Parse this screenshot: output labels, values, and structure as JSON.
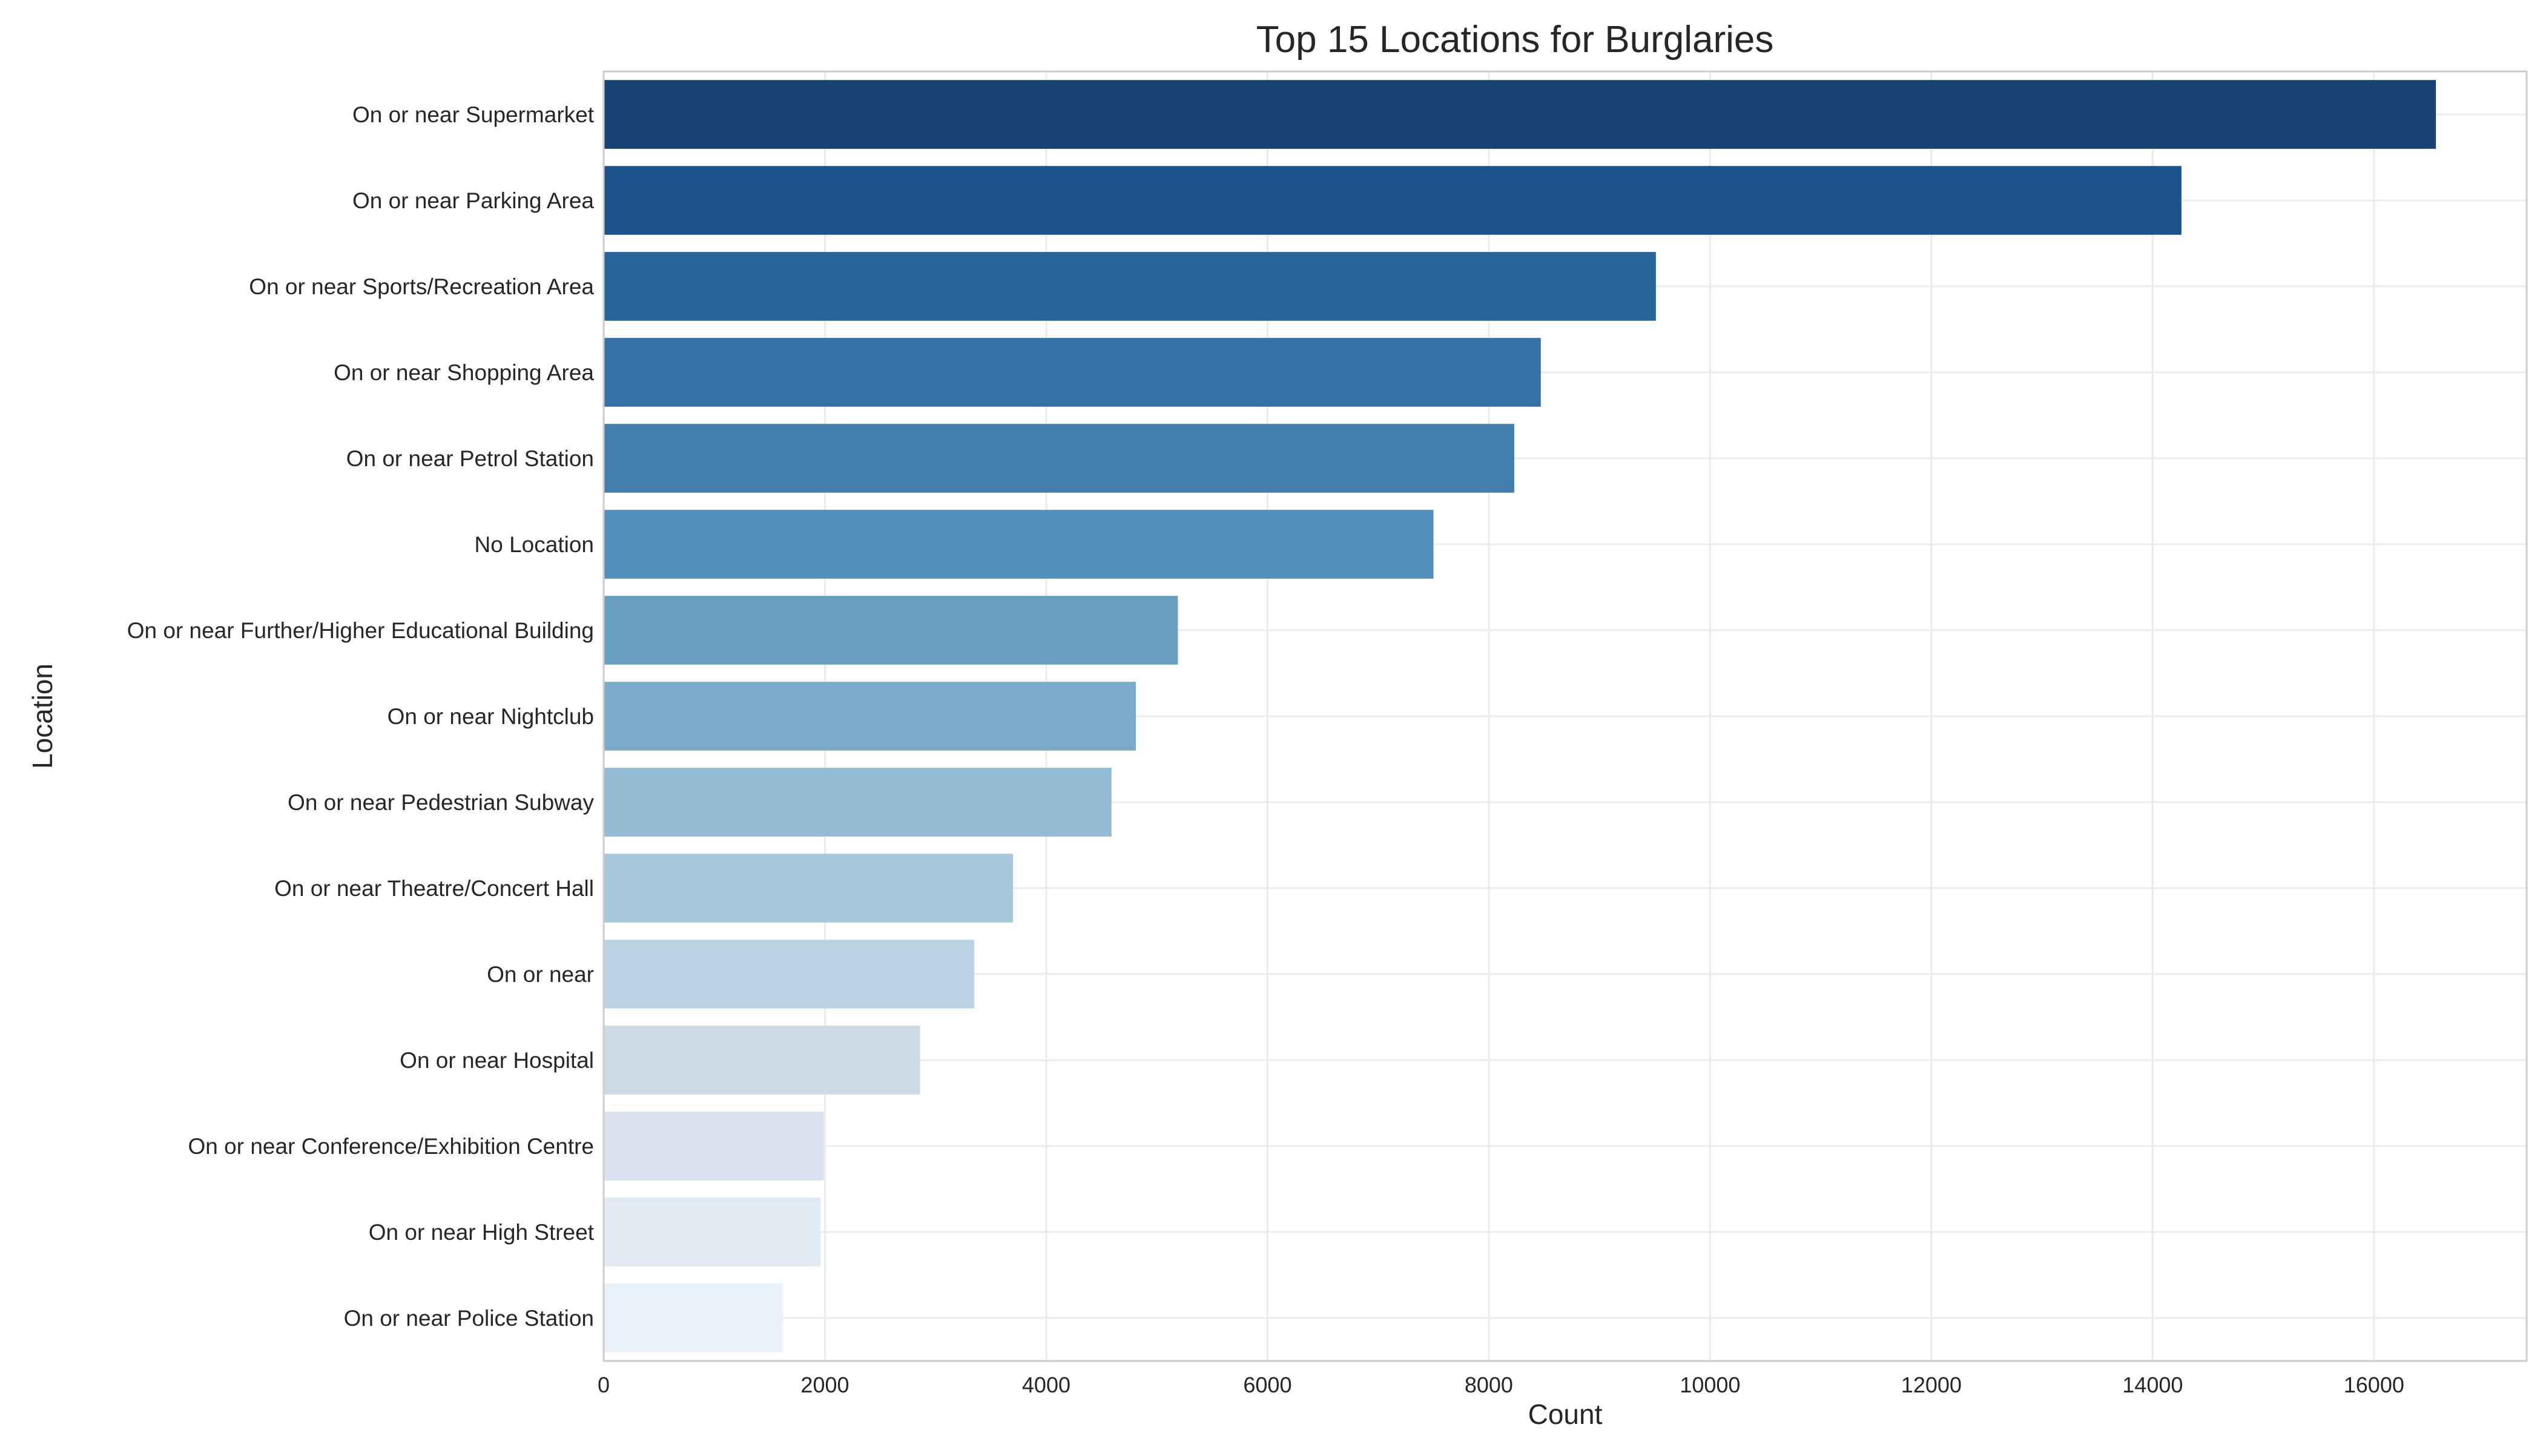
{
  "chart_data": {
    "type": "bar",
    "orientation": "horizontal",
    "title": "Top 15 Locations for Burglaries",
    "xlabel": "Count",
    "ylabel": "Location",
    "xlim": [
      0,
      17380
    ],
    "xticks": [
      0,
      2000,
      4000,
      6000,
      8000,
      10000,
      12000,
      14000,
      16000
    ],
    "grid": true,
    "categories": [
      "On or near Supermarket",
      "On or near Parking Area",
      "On or near Sports/Recreation Area",
      "On or near Shopping Area",
      "On or near Petrol Station",
      "No Location",
      "On or near Further/Higher Educational Building",
      "On or near Nightclub",
      "On or near Pedestrian Subway",
      "On or near Theatre/Concert Hall",
      "On or near ",
      "On or near Hospital",
      "On or near Conference/Exhibition Centre",
      "On or near High Street",
      "On or near Police Station"
    ],
    "values": [
      16560,
      14260,
      9510,
      8470,
      8230,
      7500,
      5190,
      4810,
      4590,
      3700,
      3350,
      2860,
      1990,
      1960,
      1620
    ],
    "colors": [
      "#1a4273",
      "#1d538d",
      "#27649a",
      "#3571a6",
      "#437fae",
      "#528fbb",
      "#689fc1",
      "#7aacca",
      "#93bad3",
      "#a7c8db",
      "#bcd3e3",
      "#cbdbe8",
      "#d8e3ef",
      "#e1e9f3",
      "#ebf1f8"
    ]
  }
}
